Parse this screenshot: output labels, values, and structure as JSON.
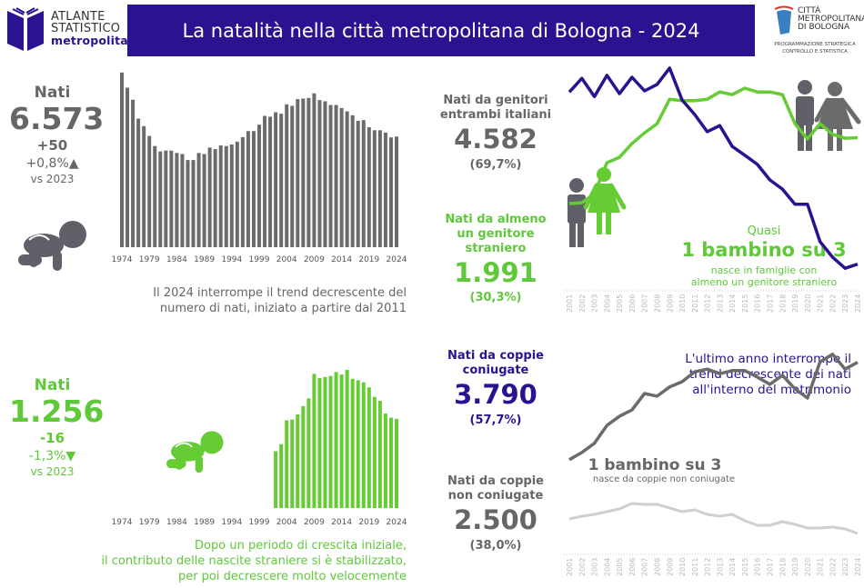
{
  "header": {
    "logo_left": {
      "line1": "ATLANTE",
      "line2": "STATISTICO",
      "line3": "metropolitano"
    },
    "title": "La natalità nella città metropolitana di Bologna - 2024",
    "logo_right": {
      "line1": "CITTÀ",
      "line2": "METROPOLITANA",
      "line3": "DI BOLOGNA",
      "sub1": "PROGRAMMAZIONE STRATEGICA",
      "sub2": "CONTROLLO E STATISTICA"
    }
  },
  "total": {
    "label": "Nati",
    "value": "6.573",
    "delta": "+50",
    "delta_pct": "+0,8%▲",
    "vs": "vs 2023",
    "note_line1": "Il 2024 interrompe il trend decrescente del",
    "note_line2": "numero di nati, iniziato a partire dal 2011"
  },
  "foreign": {
    "label": "Nati",
    "value": "1.256",
    "delta": "-16",
    "delta_pct": "-1,3%▼",
    "vs": "vs 2023",
    "note_line1": "Dopo un periodo di crescita iniziale,",
    "note_line2": "il contributo delle nascite straniere si è stabilizzato,",
    "note_line3": "per poi decrescere molto velocemente"
  },
  "middle": {
    "italian": {
      "label1": "Nati da genitori",
      "label2": "entrambi italiani",
      "value": "4.582",
      "pct": "(69,7%)"
    },
    "mixed": {
      "label1": "Nati da almeno",
      "label2": "un genitore",
      "label3": "straniero",
      "value": "1.991",
      "pct": "(30,3%)"
    },
    "married": {
      "label1": "Nati da coppie",
      "label2": "coniugate",
      "value": "3.790",
      "pct": "(57,7%)"
    },
    "unmarried": {
      "label1": "Nati da coppie",
      "label2": "non coniugate",
      "value": "2.500",
      "pct": "(38,0%)"
    }
  },
  "annotations": {
    "top_quasi": "Quasi",
    "top_big": "1 bambino su 3",
    "top_small1": "nasce in famiglie con",
    "top_small2": "almeno un genitore straniero",
    "bottom_line1": "L'ultimo anno interrompe il",
    "bottom_line2": "trend decrescente dei nati",
    "bottom_line3": "all'interno del matrimonio",
    "bottom_big": "1 bambino su 3",
    "bottom_small": "nasce da coppie non coniugate"
  },
  "colors": {
    "gray": "#6b6b6b",
    "green": "#66cc33",
    "purple": "#2a1290",
    "light_gray": "#cfcfcf",
    "banner": "#2a1290"
  },
  "icons": [
    "book-logo-icon",
    "crawling-baby-icon",
    "man-icon",
    "woman-icon",
    "coat-of-arms-icon"
  ],
  "chart_data": [
    {
      "type": "bar",
      "id": "total-births",
      "categories": [
        1974,
        1975,
        1976,
        1977,
        1978,
        1979,
        1980,
        1981,
        1982,
        1983,
        1984,
        1985,
        1986,
        1987,
        1988,
        1989,
        1990,
        1991,
        1992,
        1993,
        1994,
        1995,
        1996,
        1997,
        1998,
        1999,
        2000,
        2001,
        2002,
        2003,
        2004,
        2005,
        2006,
        2007,
        2008,
        2009,
        2010,
        2011,
        2012,
        2013,
        2014,
        2015,
        2016,
        2017,
        2018,
        2019,
        2020,
        2021,
        2022,
        2023,
        2024
      ],
      "values": [
        10380,
        9480,
        8760,
        7640,
        7190,
        6610,
        6010,
        5690,
        5740,
        5740,
        5600,
        5540,
        5180,
        5180,
        5600,
        5540,
        5920,
        5830,
        6050,
        6010,
        6100,
        6270,
        6540,
        6900,
        6900,
        7280,
        7800,
        7750,
        8020,
        7930,
        8490,
        8400,
        8800,
        8830,
        8870,
        9140,
        8740,
        8670,
        8450,
        8450,
        8270,
        8070,
        7840,
        7510,
        7550,
        7130,
        6950,
        6950,
        6810,
        6523,
        6573
      ],
      "tick_labels": [
        "1974",
        "1979",
        "1984",
        "1989",
        "1994",
        "1999",
        "2004",
        "2009",
        "2014",
        "2019",
        "2024"
      ],
      "color": "#6b6b6b"
    },
    {
      "type": "bar",
      "id": "foreign-births",
      "categories": [
        2002,
        2003,
        2004,
        2005,
        2006,
        2007,
        2008,
        2009,
        2010,
        2011,
        2012,
        2013,
        2014,
        2015,
        2016,
        2017,
        2018,
        2019,
        2020,
        2021,
        2022,
        2023,
        2024
      ],
      "values": [
        800,
        900,
        1235,
        1245,
        1320,
        1435,
        1545,
        1890,
        1830,
        1845,
        1860,
        1915,
        1880,
        1945,
        1820,
        1800,
        1770,
        1700,
        1565,
        1510,
        1330,
        1272,
        1256
      ],
      "tick_labels": [
        "1974",
        "1979",
        "1984",
        "1989",
        "1994",
        "1999",
        "2004",
        "2009",
        "2014",
        "2019",
        "2024"
      ],
      "color": "#66cc33"
    },
    {
      "type": "line",
      "id": "italian-vs-foreign-parents",
      "x": [
        2001,
        2002,
        2003,
        2004,
        2005,
        2006,
        2007,
        2008,
        2009,
        2010,
        2011,
        2012,
        2013,
        2014,
        2015,
        2016,
        2017,
        2018,
        2019,
        2020,
        2021,
        2022,
        2023,
        2024
      ],
      "series": [
        {
          "name": "Nati da genitori entrambi italiani",
          "color": "#6b6b6b",
          "values": [
            6640,
            6870,
            6660,
            6840,
            6690,
            6930,
            6810,
            6730,
            6660,
            6250,
            6200,
            5980,
            5900,
            5720,
            5450,
            5210,
            4890,
            4990,
            4970,
            4970,
            4760,
            4770,
            4490,
            4582
          ]
        },
        {
          "name": "Nati da almeno un genitore straniero",
          "color": "#66cc33",
          "values": [
            1130,
            1140,
            1260,
            1665,
            1735,
            1915,
            2055,
            2175,
            2495,
            2475,
            2475,
            2495,
            2590,
            2555,
            2640,
            2590,
            2590,
            2555,
            2175,
            1975,
            2175,
            2035,
            1985,
            1991
          ]
        }
      ]
    },
    {
      "type": "line",
      "id": "married-vs-unmarried",
      "x": [
        2001,
        2002,
        2003,
        2004,
        2005,
        2006,
        2007,
        2008,
        2009,
        2010,
        2011,
        2012,
        2013,
        2014,
        2015,
        2016,
        2017,
        2018,
        2019,
        2020,
        2021,
        2022,
        2023,
        2024
      ],
      "series": [
        {
          "name": "Nati da coppie coniugate",
          "color": "#2a1290",
          "values": [
            6050,
            6230,
            5990,
            6270,
            6030,
            6245,
            6065,
            6150,
            6365,
            5945,
            5755,
            5530,
            5610,
            5335,
            5220,
            5100,
            4895,
            4775,
            4575,
            4575,
            4085,
            3880,
            3735,
            3790
          ]
        },
        {
          "name": "Nati da coppie non coniugate",
          "color": "#6b6b6b",
          "values": [
            1220,
            1315,
            1435,
            1670,
            1790,
            1875,
            2090,
            2055,
            2175,
            2245,
            2375,
            2410,
            2350,
            2390,
            2390,
            2305,
            2210,
            2330,
            2150,
            2030,
            2505,
            2605,
            2410,
            2500
          ]
        },
        {
          "color": "#cfcfcf",
          "values": [
            442,
            478,
            501,
            537,
            573,
            645,
            633,
            633,
            585,
            537,
            561,
            501,
            478,
            501,
            418,
            358,
            358,
            406,
            370,
            322,
            322,
            334,
            310,
            251
          ]
        }
      ]
    }
  ]
}
